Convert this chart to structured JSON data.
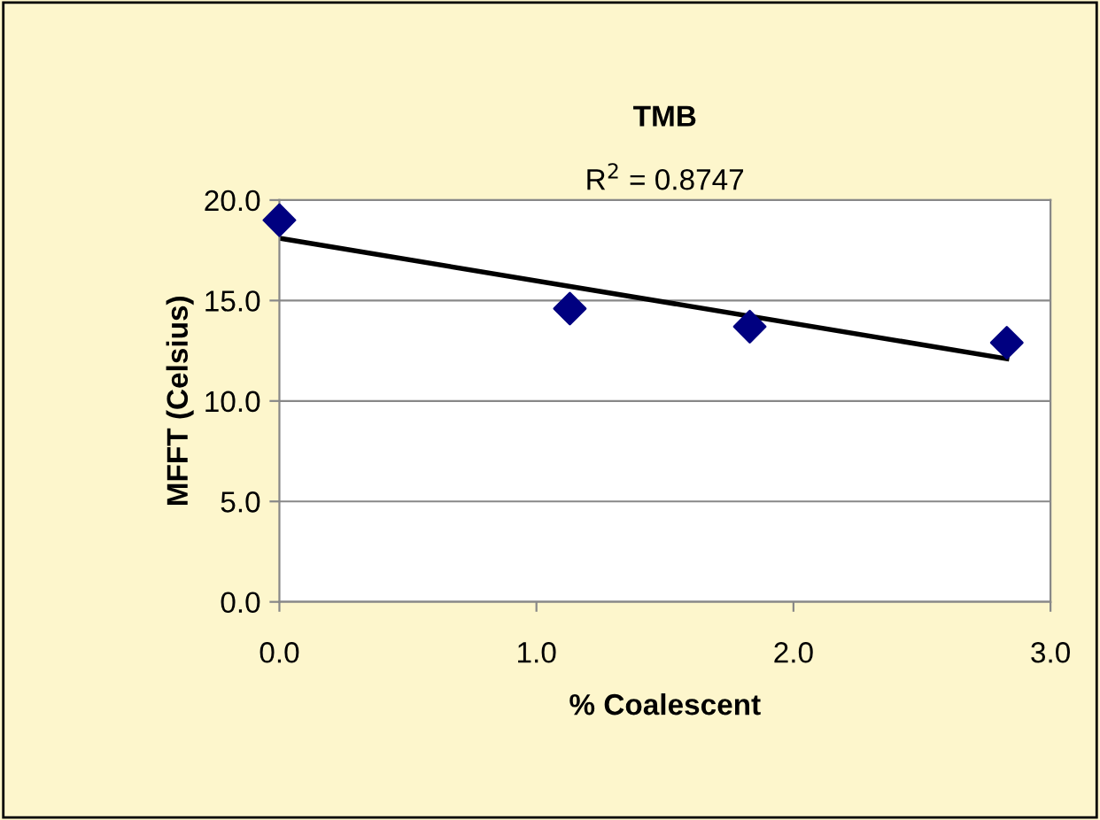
{
  "chart_data": {
    "type": "scatter",
    "title": "TMB",
    "xlabel": "% Coalescent",
    "ylabel": "MFFT (Celsius)",
    "annotations": [
      "R$^{2}$ = 0.8747"
    ],
    "series": [
      {
        "color": "#000080",
        "marker": "diamond",
        "x": [
          0,
          1.13,
          1.83,
          2.83
        ],
        "values": [
          19.0,
          14.6,
          13.7,
          12.9
        ]
      },
      {
        "type": "line",
        "color": "#000000",
        "marker": "none",
        "line_style": "solid",
        "x": [
          0,
          2.83
        ],
        "values": [
          18.1,
          12.1
        ]
      }
    ],
    "xlim": [
      0,
      3
    ],
    "xticks": [
      {
        "value": 0,
        "label": "0.0"
      },
      {
        "value": 1,
        "label": "1.0"
      },
      {
        "value": 2,
        "label": "2.0"
      },
      {
        "value": 3,
        "label": "3.0"
      }
    ],
    "ylim": [
      0,
      20
    ],
    "yticks": [
      {
        "value": 0,
        "label": "0.0"
      },
      {
        "value": 5,
        "label": "5.0"
      },
      {
        "value": 10,
        "label": "10.0"
      },
      {
        "value": 15,
        "label": "15.0"
      },
      {
        "value": 20,
        "label": "20.0"
      }
    ],
    "grid": "y",
    "legend": false
  }
}
